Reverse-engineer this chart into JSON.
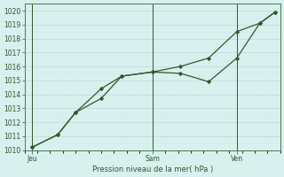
{
  "title": "",
  "xlabel": "Pression niveau de la mer( hPa )",
  "bg_color": "#d8f0ee",
  "grid_color_major": "#c0d8d8",
  "grid_color_minor": "#dce8e8",
  "line_color": "#2d5a2d",
  "ylim": [
    1010,
    1020.5
  ],
  "yticks": [
    1010,
    1011,
    1012,
    1013,
    1014,
    1015,
    1016,
    1017,
    1018,
    1019,
    1020
  ],
  "xlim": [
    0,
    10.0
  ],
  "xtick_positions": [
    0.3,
    5.0,
    8.3
  ],
  "xtick_labels": [
    "Jeu",
    "Sam",
    "Ven"
  ],
  "vline_jeu": 0.3,
  "vline_sam": 5.0,
  "vline_ven": 8.3,
  "line1_x": [
    0.3,
    1.3,
    2.0,
    3.0,
    3.8,
    5.0,
    6.1,
    7.2,
    8.3,
    9.2,
    9.8
  ],
  "line1_y": [
    1010.2,
    1011.1,
    1012.7,
    1013.7,
    1015.3,
    1015.6,
    1015.5,
    1014.9,
    1016.6,
    1019.1,
    1019.9
  ],
  "line2_x": [
    0.3,
    1.3,
    2.0,
    3.0,
    3.8,
    5.0,
    6.1,
    7.2,
    8.3,
    9.2,
    9.8
  ],
  "line2_y": [
    1010.2,
    1011.1,
    1012.7,
    1014.4,
    1015.3,
    1015.6,
    1016.0,
    1016.6,
    1018.5,
    1019.1,
    1019.9
  ]
}
